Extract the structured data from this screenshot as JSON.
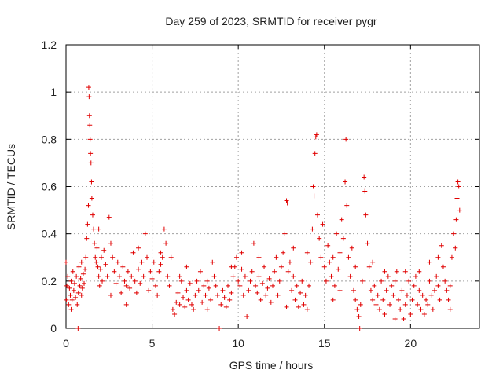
{
  "chart_data": {
    "type": "scatter",
    "title": "Day 259 of 2023, SRMTID for receiver pygr",
    "xlabel": "GPS time / hours",
    "ylabel": "SRMTID / TECUs",
    "xlim": [
      0,
      24
    ],
    "ylim": [
      0,
      1.2
    ],
    "x_ticks": [
      0,
      5,
      10,
      15,
      20
    ],
    "y_ticks": [
      0,
      0.2,
      0.4,
      0.6,
      0.8,
      1,
      1.2
    ],
    "x_tick_labels": [
      "0",
      "5",
      "10",
      "15",
      "20"
    ],
    "y_tick_labels": [
      "0",
      "0.2",
      "0.4",
      "0.6",
      "0.8",
      "1",
      "1.2"
    ],
    "grid": true,
    "marker": "+",
    "marker_color": "#e00000",
    "series": [
      {
        "name": "SRMTID",
        "points": [
          [
            0.0,
            0.28
          ],
          [
            0.02,
            0.12
          ],
          [
            0.05,
            0.18
          ],
          [
            0.1,
            0.22
          ],
          [
            0.15,
            0.1
          ],
          [
            0.2,
            0.17
          ],
          [
            0.25,
            0.14
          ],
          [
            0.3,
            0.2
          ],
          [
            0.35,
            0.12
          ],
          [
            0.4,
            0.24
          ],
          [
            0.45,
            0.16
          ],
          [
            0.5,
            0.19
          ],
          [
            0.55,
            0.13
          ],
          [
            0.6,
            0.22
          ],
          [
            0.65,
            0.1
          ],
          [
            0.7,
            0.0
          ],
          [
            0.72,
            0.15
          ],
          [
            0.75,
            0.26
          ],
          [
            0.8,
            0.18
          ],
          [
            0.85,
            0.21
          ],
          [
            0.9,
            0.14
          ],
          [
            0.95,
            0.17
          ],
          [
            1.0,
            0.23
          ],
          [
            1.05,
            0.19
          ],
          [
            1.1,
            0.25
          ],
          [
            1.15,
            0.3
          ],
          [
            1.2,
            0.38
          ],
          [
            1.25,
            0.44
          ],
          [
            1.3,
            0.52
          ],
          [
            1.32,
            1.02
          ],
          [
            1.34,
            0.98
          ],
          [
            1.36,
            0.9
          ],
          [
            1.38,
            0.86
          ],
          [
            1.4,
            0.8
          ],
          [
            1.42,
            0.74
          ],
          [
            1.45,
            0.7
          ],
          [
            1.48,
            0.62
          ],
          [
            1.5,
            0.55
          ],
          [
            1.55,
            0.48
          ],
          [
            1.6,
            0.42
          ],
          [
            1.65,
            0.36
          ],
          [
            1.7,
            0.3
          ],
          [
            1.75,
            0.28
          ],
          [
            1.8,
            0.34
          ],
          [
            1.85,
            0.26
          ],
          [
            1.9,
            0.22
          ],
          [
            1.95,
            0.18
          ],
          [
            2.0,
            0.25
          ],
          [
            2.05,
            0.3
          ],
          [
            2.1,
            0.2
          ],
          [
            2.2,
            0.33
          ],
          [
            2.3,
            0.27
          ],
          [
            2.4,
            0.22
          ],
          [
            2.5,
            0.47
          ],
          [
            2.6,
            0.36
          ],
          [
            2.7,
            0.3
          ],
          [
            2.8,
            0.24
          ],
          [
            2.9,
            0.19
          ],
          [
            3.0,
            0.28
          ],
          [
            3.1,
            0.22
          ],
          [
            3.2,
            0.15
          ],
          [
            3.3,
            0.26
          ],
          [
            3.4,
            0.2
          ],
          [
            3.5,
            0.18
          ],
          [
            3.6,
            0.24
          ],
          [
            3.7,
            0.17
          ],
          [
            3.8,
            0.22
          ],
          [
            3.9,
            0.32
          ],
          [
            4.0,
            0.2
          ],
          [
            4.1,
            0.15
          ],
          [
            4.2,
            0.25
          ],
          [
            4.3,
            0.19
          ],
          [
            4.4,
            0.28
          ],
          [
            4.5,
            0.22
          ],
          [
            4.6,
            0.4
          ],
          [
            4.7,
            0.3
          ],
          [
            4.8,
            0.16
          ],
          [
            4.9,
            0.24
          ],
          [
            5.0,
            0.21
          ],
          [
            5.1,
            0.28
          ],
          [
            5.2,
            0.18
          ],
          [
            5.3,
            0.14
          ],
          [
            5.4,
            0.24
          ],
          [
            5.5,
            0.27
          ],
          [
            5.6,
            0.3
          ],
          [
            5.7,
            0.42
          ],
          [
            5.8,
            0.36
          ],
          [
            5.9,
            0.22
          ],
          [
            6.0,
            0.18
          ],
          [
            6.1,
            0.3
          ],
          [
            6.2,
            0.08
          ],
          [
            6.3,
            0.06
          ],
          [
            6.4,
            0.11
          ],
          [
            6.5,
            0.15
          ],
          [
            6.6,
            0.1
          ],
          [
            6.7,
            0.2
          ],
          [
            6.8,
            0.13
          ],
          [
            6.9,
            0.09
          ],
          [
            7.0,
            0.16
          ],
          [
            7.1,
            0.12
          ],
          [
            7.2,
            0.19
          ],
          [
            7.3,
            0.1
          ],
          [
            7.4,
            0.08
          ],
          [
            7.5,
            0.14
          ],
          [
            7.6,
            0.2
          ],
          [
            7.7,
            0.16
          ],
          [
            7.8,
            0.24
          ],
          [
            7.9,
            0.11
          ],
          [
            8.0,
            0.18
          ],
          [
            8.1,
            0.14
          ],
          [
            8.2,
            0.2
          ],
          [
            8.3,
            0.17
          ],
          [
            8.4,
            0.12
          ],
          [
            8.5,
            0.28
          ],
          [
            8.6,
            0.22
          ],
          [
            8.7,
            0.18
          ],
          [
            8.8,
            0.14
          ],
          [
            8.9,
            0.0
          ],
          [
            9.0,
            0.1
          ],
          [
            9.1,
            0.16
          ],
          [
            9.2,
            0.13
          ],
          [
            9.3,
            0.09
          ],
          [
            9.4,
            0.18
          ],
          [
            9.5,
            0.12
          ],
          [
            9.6,
            0.15
          ],
          [
            9.7,
            0.22
          ],
          [
            9.8,
            0.26
          ],
          [
            9.9,
            0.3
          ],
          [
            10.0,
            0.2
          ],
          [
            10.1,
            0.18
          ],
          [
            10.2,
            0.25
          ],
          [
            10.3,
            0.14
          ],
          [
            10.4,
            0.22
          ],
          [
            10.5,
            0.05
          ],
          [
            10.6,
            0.16
          ],
          [
            10.7,
            0.2
          ],
          [
            10.8,
            0.24
          ],
          [
            10.9,
            0.36
          ],
          [
            11.0,
            0.18
          ],
          [
            11.1,
            0.15
          ],
          [
            11.2,
            0.22
          ],
          [
            11.3,
            0.12
          ],
          [
            11.4,
            0.19
          ],
          [
            11.5,
            0.26
          ],
          [
            11.6,
            0.14
          ],
          [
            11.7,
            0.17
          ],
          [
            11.8,
            0.21
          ],
          [
            11.9,
            0.11
          ],
          [
            12.0,
            0.18
          ],
          [
            12.1,
            0.24
          ],
          [
            12.2,
            0.3
          ],
          [
            12.3,
            0.14
          ],
          [
            12.4,
            0.2
          ],
          [
            12.5,
            0.26
          ],
          [
            12.6,
            0.32
          ],
          [
            12.7,
            0.4
          ],
          [
            12.8,
            0.54
          ],
          [
            12.85,
            0.53
          ],
          [
            12.9,
            0.24
          ],
          [
            13.0,
            0.28
          ],
          [
            13.1,
            0.16
          ],
          [
            13.2,
            0.22
          ],
          [
            13.3,
            0.12
          ],
          [
            13.4,
            0.18
          ],
          [
            13.5,
            0.09
          ],
          [
            13.6,
            0.15
          ],
          [
            13.7,
            0.2
          ],
          [
            13.8,
            0.1
          ],
          [
            13.9,
            0.14
          ],
          [
            14.0,
            0.08
          ],
          [
            14.1,
            0.18
          ],
          [
            14.2,
            0.28
          ],
          [
            14.3,
            0.42
          ],
          [
            14.35,
            0.6
          ],
          [
            14.4,
            0.56
          ],
          [
            14.45,
            0.74
          ],
          [
            14.5,
            0.81
          ],
          [
            14.55,
            0.82
          ],
          [
            14.6,
            0.48
          ],
          [
            14.7,
            0.38
          ],
          [
            14.8,
            0.3
          ],
          [
            14.9,
            0.44
          ],
          [
            15.0,
            0.26
          ],
          [
            15.1,
            0.2
          ],
          [
            15.2,
            0.35
          ],
          [
            15.3,
            0.28
          ],
          [
            15.4,
            0.22
          ],
          [
            15.5,
            0.3
          ],
          [
            15.6,
            0.18
          ],
          [
            15.7,
            0.4
          ],
          [
            15.8,
            0.25
          ],
          [
            15.9,
            0.32
          ],
          [
            16.0,
            0.46
          ],
          [
            16.1,
            0.38
          ],
          [
            16.2,
            0.62
          ],
          [
            16.25,
            0.8
          ],
          [
            16.3,
            0.52
          ],
          [
            16.4,
            0.3
          ],
          [
            16.5,
            0.22
          ],
          [
            16.6,
            0.34
          ],
          [
            16.7,
            0.16
          ],
          [
            16.8,
            0.12
          ],
          [
            16.9,
            0.08
          ],
          [
            17.0,
            0.05
          ],
          [
            17.05,
            0.0
          ],
          [
            17.1,
            0.1
          ],
          [
            17.2,
            0.2
          ],
          [
            17.3,
            0.64
          ],
          [
            17.35,
            0.58
          ],
          [
            17.4,
            0.48
          ],
          [
            17.5,
            0.36
          ],
          [
            17.6,
            0.26
          ],
          [
            17.7,
            0.16
          ],
          [
            17.8,
            0.12
          ],
          [
            17.9,
            0.18
          ],
          [
            18.0,
            0.1
          ],
          [
            18.1,
            0.14
          ],
          [
            18.2,
            0.08
          ],
          [
            18.3,
            0.2
          ],
          [
            18.4,
            0.12
          ],
          [
            18.5,
            0.06
          ],
          [
            18.6,
            0.16
          ],
          [
            18.7,
            0.22
          ],
          [
            18.8,
            0.1
          ],
          [
            18.9,
            0.18
          ],
          [
            19.0,
            0.14
          ],
          [
            19.1,
            0.2
          ],
          [
            19.2,
            0.24
          ],
          [
            19.3,
            0.12
          ],
          [
            19.4,
            0.08
          ],
          [
            19.5,
            0.16
          ],
          [
            19.6,
            0.04
          ],
          [
            19.7,
            0.1
          ],
          [
            19.8,
            0.14
          ],
          [
            19.9,
            0.2
          ],
          [
            20.0,
            0.06
          ],
          [
            20.1,
            0.12
          ],
          [
            20.2,
            0.18
          ],
          [
            20.3,
            0.22
          ],
          [
            20.4,
            0.1
          ],
          [
            20.5,
            0.16
          ],
          [
            20.6,
            0.08
          ],
          [
            20.7,
            0.14
          ],
          [
            20.8,
            0.06
          ],
          [
            20.9,
            0.12
          ],
          [
            21.0,
            0.1
          ],
          [
            21.1,
            0.2
          ],
          [
            21.2,
            0.14
          ],
          [
            21.3,
            0.08
          ],
          [
            21.4,
            0.16
          ],
          [
            21.5,
            0.22
          ],
          [
            21.6,
            0.18
          ],
          [
            21.7,
            0.12
          ],
          [
            21.8,
            0.35
          ],
          [
            21.9,
            0.26
          ],
          [
            22.0,
            0.2
          ],
          [
            22.1,
            0.16
          ],
          [
            22.2,
            0.12
          ],
          [
            22.3,
            0.18
          ],
          [
            22.4,
            0.3
          ],
          [
            22.5,
            0.4
          ],
          [
            22.6,
            0.34
          ],
          [
            22.65,
            0.46
          ],
          [
            22.7,
            0.55
          ],
          [
            22.75,
            0.62
          ],
          [
            22.8,
            0.6
          ],
          [
            22.85,
            0.5
          ],
          [
            0.3,
            0.08
          ],
          [
            1.9,
            0.42
          ],
          [
            3.5,
            0.1
          ],
          [
            5.5,
            0.32
          ],
          [
            7.0,
            0.26
          ],
          [
            8.2,
            0.08
          ],
          [
            11.2,
            0.3
          ],
          [
            13.2,
            0.34
          ],
          [
            15.5,
            0.12
          ],
          [
            16.8,
            0.26
          ],
          [
            18.5,
            0.24
          ],
          [
            20.5,
            0.24
          ],
          [
            22.3,
            0.08
          ],
          [
            4.2,
            0.34
          ],
          [
            6.6,
            0.22
          ],
          [
            9.6,
            0.26
          ],
          [
            12.8,
            0.09
          ],
          [
            14.0,
            0.32
          ],
          [
            17.8,
            0.28
          ],
          [
            19.1,
            0.04
          ],
          [
            21.1,
            0.28
          ],
          [
            0.9,
            0.28
          ],
          [
            2.6,
            0.14
          ],
          [
            10.2,
            0.32
          ],
          [
            15.9,
            0.16
          ],
          [
            19.7,
            0.24
          ],
          [
            21.6,
            0.3
          ]
        ]
      }
    ]
  }
}
